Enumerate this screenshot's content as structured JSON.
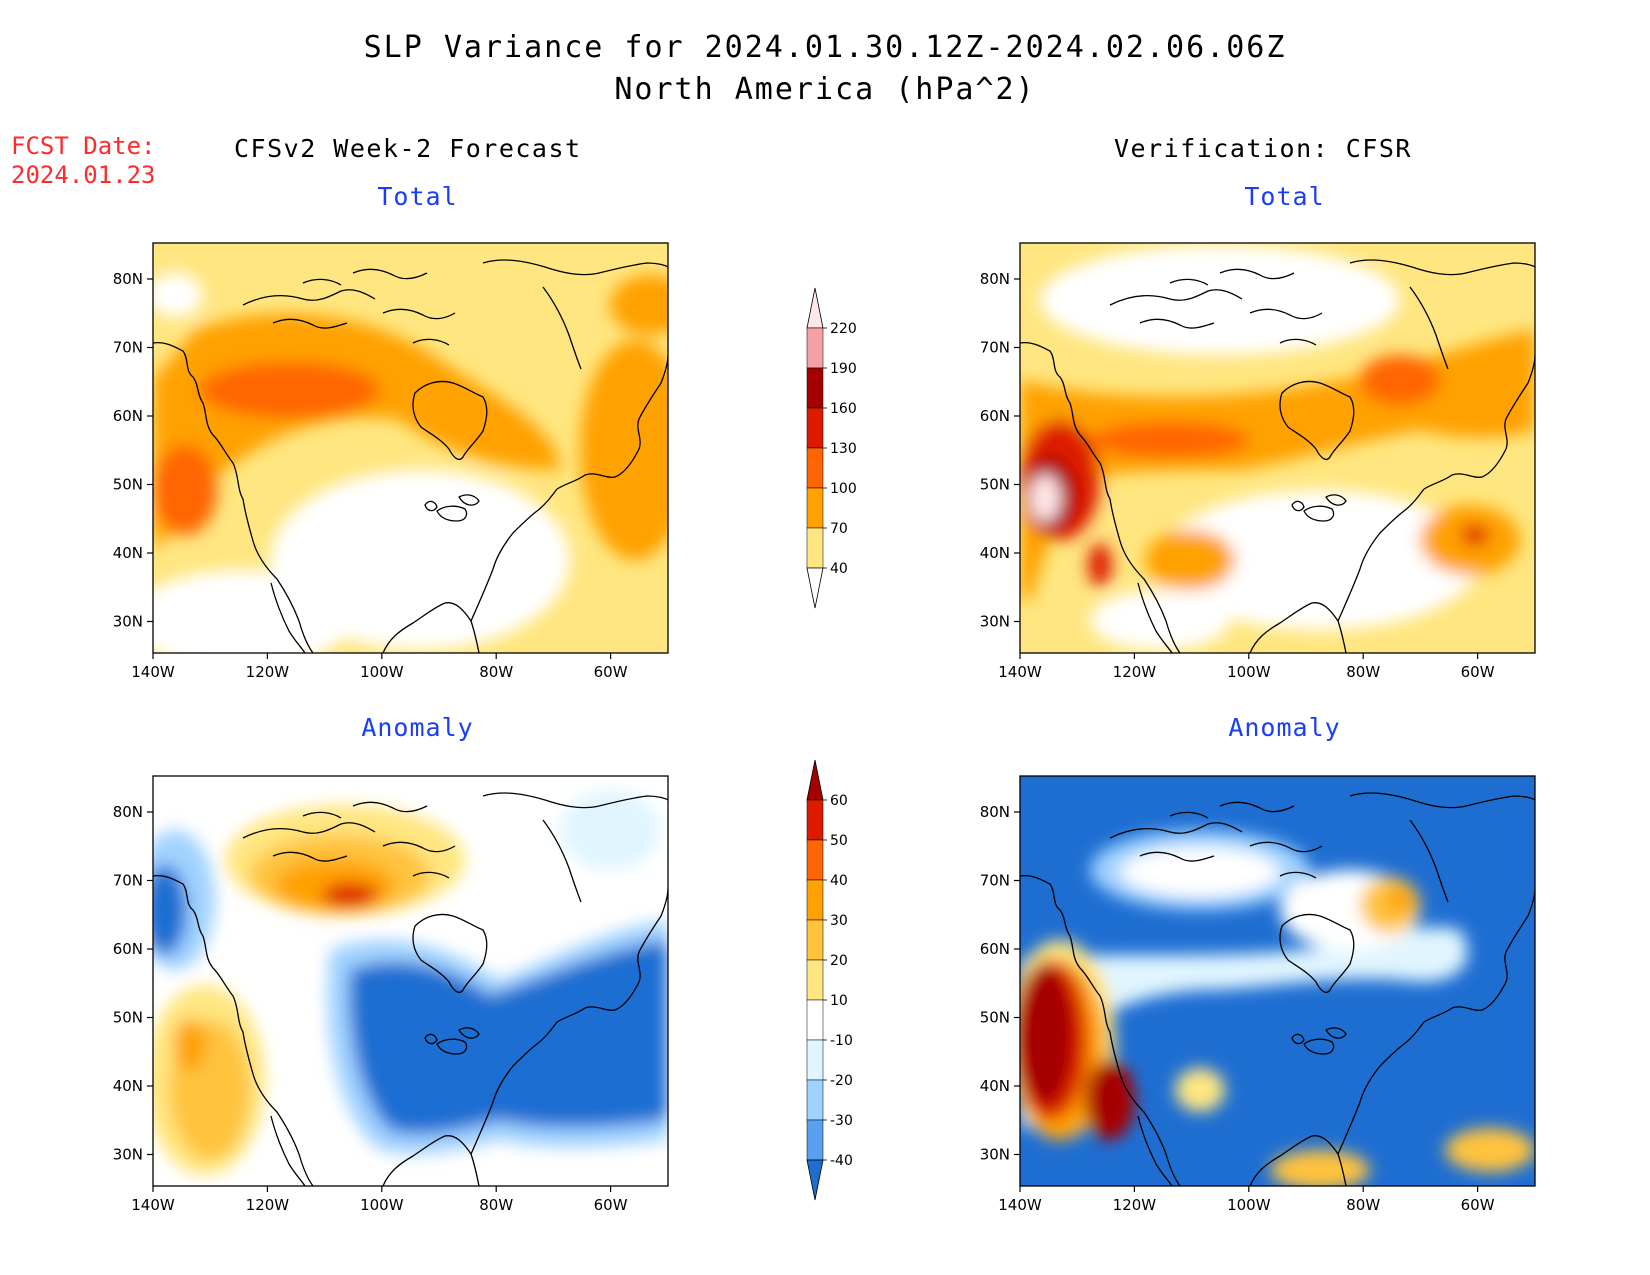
{
  "header": {
    "title_line1": "SLP Variance for 2024.01.30.12Z-2024.02.06.06Z",
    "title_line2": "North America (hPa^2)"
  },
  "fcst": {
    "line1": "FCST Date:",
    "line2": "2024.01.23"
  },
  "columns": {
    "left_heading": "CFSv2 Week-2 Forecast",
    "right_heading": "Verification: CFSR"
  },
  "panels": {
    "top_left_title": "Total",
    "top_right_title": "Total",
    "bottom_left_title": "Anomaly",
    "bottom_right_title": "Anomaly"
  },
  "axes": {
    "lat_labels": [
      "80N",
      "70N",
      "60N",
      "50N",
      "40N",
      "30N"
    ],
    "lon_labels": [
      "140W",
      "120W",
      "100W",
      "80W",
      "60W"
    ]
  },
  "colorbars": {
    "total": {
      "labels": [
        "220",
        "190",
        "160",
        "130",
        "100",
        "70",
        "40"
      ],
      "colors": [
        "#ffe6e8",
        "#f4a0a6",
        "#a50000",
        "#dd1a00",
        "#ff6500",
        "#ffa100",
        "#ffe680"
      ]
    },
    "anomaly": {
      "labels": [
        "60",
        "50",
        "40",
        "30",
        "20",
        "10",
        "-10",
        "-20",
        "-30",
        "-40"
      ],
      "colors": [
        "#a50000",
        "#dd1a00",
        "#ff6500",
        "#ffa100",
        "#ffc33c",
        "#ffe680",
        "#ffffff",
        "#e0f5ff",
        "#a0d2ff",
        "#5aa0f0",
        "#1e6ed2"
      ]
    }
  },
  "map_colors": {
    "yellow": "#ffe680",
    "light_orange": "#ffc33c",
    "orange": "#ffa100",
    "dark_orange": "#ff6500",
    "red": "#dd1a00",
    "dark_red": "#a50000",
    "pink": "#ffe6e8",
    "light_blue": "#e0f5ff",
    "sky_blue": "#a0d2ff",
    "mid_blue": "#5aa0f0",
    "blue": "#1e6ed2"
  }
}
